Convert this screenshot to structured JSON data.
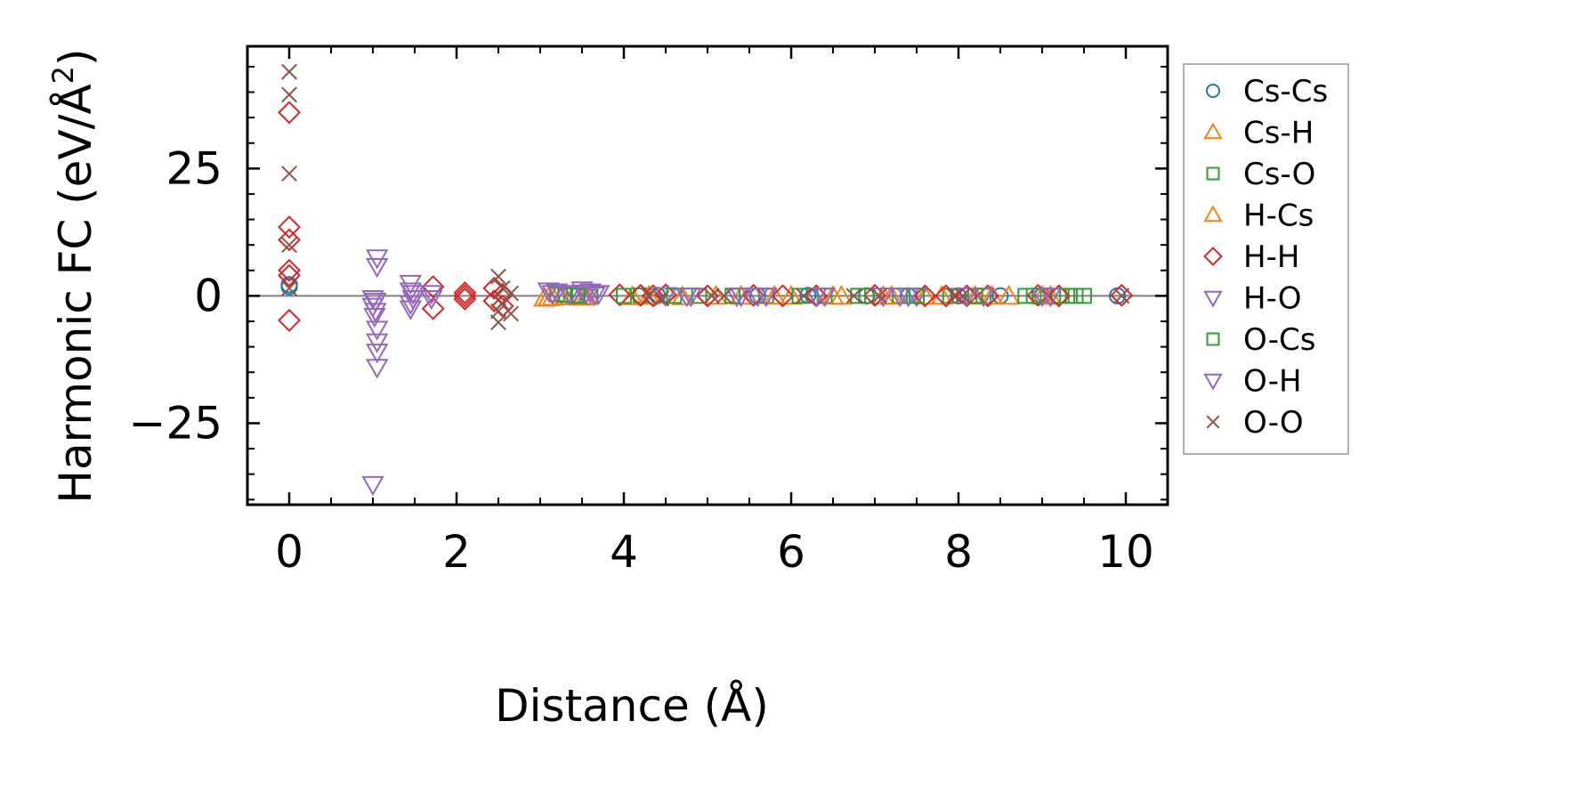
{
  "chart_data": {
    "type": "scatter",
    "xlabel": "Distance (Å)",
    "ylabel": "Harmonic FC (eV/Å",
    "ylabel_superscript": "2",
    "ylabel_suffix": ")",
    "xlim": [
      -0.5,
      10.5
    ],
    "ylim": [
      -41,
      49
    ],
    "xticks": [
      0,
      2,
      4,
      6,
      8,
      10
    ],
    "xtick_labels": [
      "0",
      "2",
      "4",
      "6",
      "8",
      "10"
    ],
    "yticks": [
      -25,
      0,
      25
    ],
    "ytick_labels": [
      "−25",
      "0",
      "25"
    ],
    "reference_line_y": 0,
    "grid": false,
    "legend_position": "right",
    "series": [
      {
        "name": "Cs-Cs",
        "marker": "circle",
        "color": "#1f77b4",
        "points": [
          [
            0.0,
            2.2
          ],
          [
            0.0,
            1.8
          ],
          [
            4.4,
            0.1
          ],
          [
            5.6,
            0.0
          ],
          [
            6.2,
            0.1
          ],
          [
            6.9,
            0.0
          ],
          [
            7.4,
            0.0
          ],
          [
            8.0,
            0.0
          ],
          [
            8.5,
            0.0
          ],
          [
            9.0,
            0.0
          ],
          [
            9.9,
            0.0
          ]
        ]
      },
      {
        "name": "Cs-H",
        "marker": "triangle-up",
        "color": "#ff7f0e",
        "points": [
          [
            3.05,
            -0.5
          ],
          [
            3.15,
            -0.3
          ],
          [
            3.3,
            -0.2
          ],
          [
            3.5,
            -0.3
          ],
          [
            4.1,
            -0.2
          ],
          [
            4.7,
            -0.2
          ],
          [
            5.4,
            -0.1
          ],
          [
            6.0,
            -0.1
          ],
          [
            6.6,
            -0.1
          ],
          [
            7.1,
            -0.1
          ],
          [
            7.6,
            -0.1
          ],
          [
            8.2,
            -0.1
          ],
          [
            8.6,
            -0.1
          ],
          [
            9.1,
            -0.1
          ]
        ]
      },
      {
        "name": "Cs-O",
        "marker": "square",
        "color": "#2ca02c",
        "points": [
          [
            3.2,
            0.3
          ],
          [
            3.4,
            0.1
          ],
          [
            3.6,
            -0.2
          ],
          [
            4.2,
            0.1
          ],
          [
            4.9,
            0.0
          ],
          [
            5.7,
            0.0
          ],
          [
            6.4,
            0.0
          ],
          [
            6.9,
            0.0
          ],
          [
            7.3,
            0.0
          ],
          [
            7.9,
            0.0
          ],
          [
            8.3,
            0.0
          ],
          [
            8.8,
            0.0
          ],
          [
            9.2,
            0.0
          ],
          [
            9.4,
            0.0
          ],
          [
            9.5,
            0.0
          ]
        ]
      },
      {
        "name": "H-Cs",
        "marker": "triangle-up",
        "color": "#ff7f0e",
        "points": [
          [
            3.1,
            -0.4
          ],
          [
            3.25,
            -0.2
          ],
          [
            3.55,
            -0.1
          ],
          [
            4.3,
            -0.1
          ],
          [
            5.1,
            -0.1
          ],
          [
            5.8,
            -0.1
          ],
          [
            6.5,
            -0.1
          ],
          [
            7.2,
            -0.1
          ],
          [
            7.8,
            -0.1
          ],
          [
            8.4,
            -0.1
          ],
          [
            9.0,
            -0.1
          ]
        ]
      },
      {
        "name": "H-H",
        "marker": "diamond",
        "color": "#d62728",
        "points": [
          [
            0.0,
            36.0
          ],
          [
            0.0,
            13.5
          ],
          [
            0.0,
            11.0
          ],
          [
            0.0,
            5.0
          ],
          [
            0.0,
            4.0
          ],
          [
            0.0,
            -4.8
          ],
          [
            1.72,
            1.8
          ],
          [
            1.72,
            -2.5
          ],
          [
            2.1,
            0.6
          ],
          [
            2.1,
            0.0
          ],
          [
            2.1,
            -0.6
          ],
          [
            2.45,
            1.5
          ],
          [
            2.45,
            -1.0
          ],
          [
            2.55,
            0.3
          ],
          [
            2.55,
            -2.0
          ],
          [
            3.95,
            0.2
          ],
          [
            4.2,
            0.1
          ],
          [
            4.35,
            0.0
          ],
          [
            4.5,
            0.2
          ],
          [
            5.0,
            0.0
          ],
          [
            5.55,
            0.1
          ],
          [
            5.9,
            0.0
          ],
          [
            6.3,
            0.0
          ],
          [
            7.0,
            0.1
          ],
          [
            7.6,
            0.0
          ],
          [
            7.85,
            0.0
          ],
          [
            8.1,
            0.0
          ],
          [
            8.35,
            0.0
          ],
          [
            8.95,
            0.1
          ],
          [
            9.2,
            0.0
          ],
          [
            9.95,
            0.1
          ]
        ]
      },
      {
        "name": "H-O",
        "marker": "triangle-down",
        "color": "#9467bd",
        "points": [
          [
            1.0,
            -0.5
          ],
          [
            1.0,
            -2.0
          ],
          [
            1.02,
            -4.0
          ],
          [
            1.05,
            7.5
          ],
          [
            1.05,
            5.8
          ],
          [
            1.05,
            -6.5
          ],
          [
            1.05,
            -9.0
          ],
          [
            1.05,
            -11.0
          ],
          [
            1.05,
            -14.0
          ],
          [
            1.0,
            -37.0
          ],
          [
            1.45,
            2.5
          ],
          [
            1.45,
            1.0
          ],
          [
            1.45,
            -1.5
          ],
          [
            1.45,
            -2.5
          ],
          [
            1.7,
            0.5
          ],
          [
            1.7,
            -0.5
          ],
          [
            3.1,
            1.0
          ],
          [
            3.2,
            0.8
          ],
          [
            3.4,
            0.5
          ],
          [
            3.5,
            1.2
          ],
          [
            3.6,
            0.8
          ],
          [
            3.7,
            0.5
          ],
          [
            4.5,
            0.1
          ],
          [
            4.8,
            0.0
          ],
          [
            5.4,
            0.0
          ],
          [
            5.7,
            0.0
          ],
          [
            6.3,
            0.0
          ],
          [
            7.3,
            0.0
          ],
          [
            7.5,
            0.0
          ],
          [
            8.3,
            0.0
          ],
          [
            9.0,
            0.0
          ]
        ]
      },
      {
        "name": "O-Cs",
        "marker": "square",
        "color": "#2ca02c",
        "points": [
          [
            3.3,
            0.2
          ],
          [
            3.45,
            0.0
          ],
          [
            4.0,
            0.0
          ],
          [
            4.6,
            0.0
          ],
          [
            5.3,
            0.0
          ],
          [
            6.1,
            0.0
          ],
          [
            6.8,
            0.0
          ],
          [
            7.5,
            0.0
          ],
          [
            8.2,
            0.0
          ],
          [
            8.9,
            0.0
          ],
          [
            9.3,
            0.0
          ]
        ]
      },
      {
        "name": "O-H",
        "marker": "triangle-down",
        "color": "#9467bd",
        "points": [
          [
            1.03,
            -1.0
          ],
          [
            1.03,
            -3.0
          ],
          [
            1.48,
            0.5
          ],
          [
            1.48,
            -0.5
          ],
          [
            3.15,
            0.5
          ],
          [
            3.35,
            0.3
          ],
          [
            3.55,
            0.6
          ],
          [
            3.65,
            0.2
          ],
          [
            4.75,
            0.0
          ],
          [
            5.35,
            0.0
          ],
          [
            5.6,
            0.0
          ],
          [
            6.4,
            0.0
          ],
          [
            7.1,
            0.0
          ],
          [
            7.4,
            0.0
          ],
          [
            8.1,
            0.0
          ],
          [
            9.1,
            0.0
          ]
        ]
      },
      {
        "name": "O-O",
        "marker": "x",
        "color": "#8c564b",
        "points": [
          [
            0.0,
            44.0
          ],
          [
            0.0,
            39.5
          ],
          [
            0.0,
            24.0
          ],
          [
            0.0,
            10.0
          ],
          [
            0.0,
            1.5
          ],
          [
            2.5,
            3.8
          ],
          [
            2.5,
            -3.0
          ],
          [
            2.5,
            -5.2
          ],
          [
            2.55,
            1.5
          ],
          [
            2.55,
            -1.5
          ],
          [
            2.65,
            0.5
          ],
          [
            2.65,
            -3.5
          ],
          [
            4.3,
            0.0
          ],
          [
            4.45,
            -0.5
          ],
          [
            5.05,
            0.0
          ],
          [
            5.2,
            0.0
          ],
          [
            6.15,
            0.0
          ],
          [
            6.75,
            0.0
          ],
          [
            7.05,
            0.0
          ],
          [
            7.95,
            0.0
          ],
          [
            8.05,
            0.0
          ],
          [
            9.95,
            0.0
          ]
        ]
      }
    ]
  }
}
